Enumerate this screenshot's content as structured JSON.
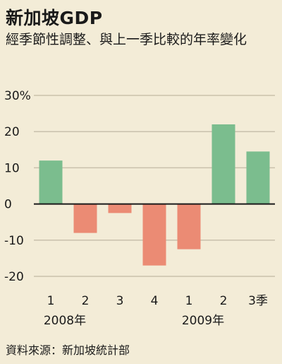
{
  "title": "新加坡GDP",
  "subtitle": "經季節性調整、與上一季比較的年率變化",
  "source": "資料來源：新加坡統計部",
  "colors": {
    "positive": "#7bbd8e",
    "negative": "#eb8b74",
    "grid": "#c9c1ac",
    "axis": "#1a1a1a"
  },
  "chart_data": {
    "type": "bar",
    "categories": [
      "1",
      "2",
      "3",
      "4",
      "1",
      "2",
      "3季"
    ],
    "year_labels": [
      {
        "label": "2008年",
        "start_index": 0,
        "end_index": 3
      },
      {
        "label": "2009年",
        "start_index": 4,
        "end_index": 6
      }
    ],
    "values": [
      12.0,
      -8.0,
      -2.5,
      -17.0,
      -12.5,
      22.0,
      14.5
    ],
    "ylim": [
      -20,
      30
    ],
    "yticks": [
      30,
      20,
      10,
      0,
      -10,
      -20
    ],
    "ytick_labels": [
      "30%",
      "20",
      "10",
      "0",
      "-10",
      "-20"
    ],
    "grid": true,
    "title": "新加坡GDP",
    "ylabel": ""
  }
}
